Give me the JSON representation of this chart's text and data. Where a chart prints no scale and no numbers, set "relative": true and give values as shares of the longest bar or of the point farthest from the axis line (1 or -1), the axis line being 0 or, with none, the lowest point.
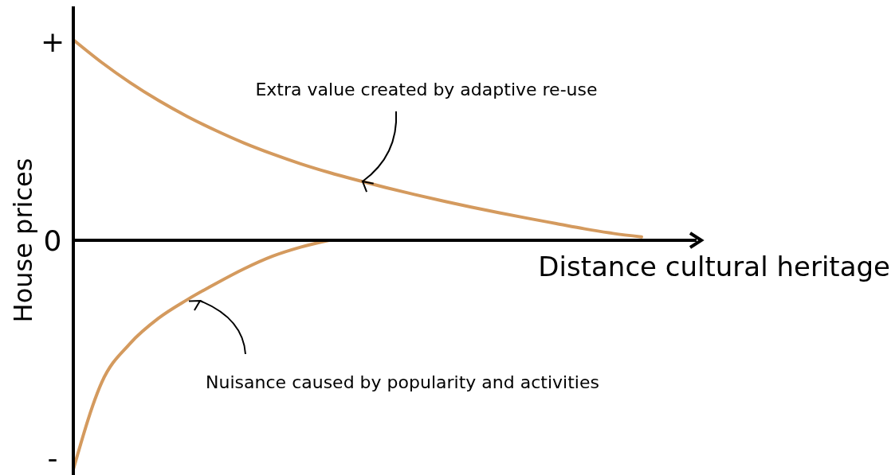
{
  "chart_data": {
    "type": "line",
    "relative": true,
    "xlabel": "Distance cultural heritage",
    "ylabel": "House prices",
    "categories": [
      null,
      null,
      null,
      null,
      null,
      null,
      null,
      null,
      null,
      null,
      null,
      null,
      null,
      null,
      null,
      null,
      null,
      null,
      null,
      null,
      null
    ],
    "series": [
      {
        "color": "#d49a5e",
        "values": [
          0.875,
          0.776,
          0.688,
          0.61,
          0.541,
          0.48,
          0.425,
          0.377,
          0.334,
          0.296,
          0.262,
          0.23,
          0.2,
          0.172,
          0.145,
          0.12,
          0.096,
          0.073,
          0.05,
          0.03,
          0.015
        ]
      },
      {
        "color": "#d49a5e",
        "values": [
          -1,
          -0.62,
          -0.45,
          -0.34,
          -0.26,
          -0.19,
          -0.125,
          -0.07,
          -0.03,
          0,
          null,
          null,
          null,
          null,
          null,
          null,
          null,
          null,
          null,
          null,
          null
        ]
      }
    ],
    "annotations": [
      "+",
      "0",
      "-",
      "Extra value created by adaptive re-use",
      "Nuisance caused by popularity and activities"
    ],
    "marker": "none",
    "line_style": "solid"
  }
}
